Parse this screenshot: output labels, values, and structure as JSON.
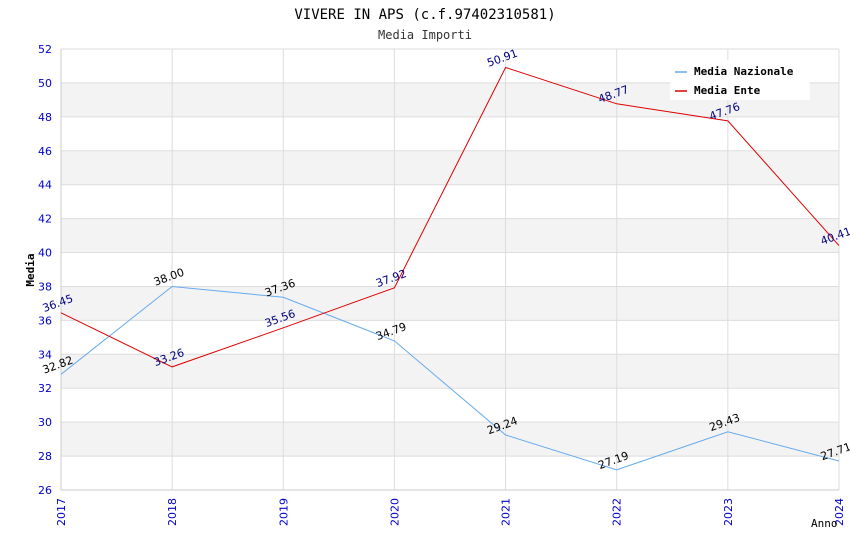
{
  "chart_data": {
    "type": "line",
    "title": "VIVERE IN APS (c.f.97402310581)",
    "subtitle": "Media Importi",
    "xlabel": "Anno",
    "ylabel": "Media",
    "x": [
      "2017",
      "2018",
      "2019",
      "2020",
      "2021",
      "2022",
      "2023",
      "2024"
    ],
    "ylim": [
      26,
      52
    ],
    "yticks": [
      "26",
      "28",
      "30",
      "32",
      "34",
      "36",
      "38",
      "40",
      "42",
      "44",
      "46",
      "48",
      "50",
      "52"
    ],
    "grid": true,
    "legend_position": "top-right",
    "series": [
      {
        "name": "Media Nazionale",
        "color": "#66aaee",
        "label_color": "#000000",
        "values": [
          32.82,
          38.0,
          37.36,
          34.79,
          29.24,
          27.19,
          29.43,
          27.71
        ],
        "labels": [
          "32.82",
          "38.00",
          "37.36",
          "34.79",
          "29.24",
          "27.19",
          "29.43",
          "27.71"
        ]
      },
      {
        "name": "Media Ente",
        "color": "#dd0000",
        "label_color": "#000080",
        "values": [
          36.45,
          33.26,
          35.56,
          37.92,
          50.91,
          48.77,
          47.76,
          40.41
        ],
        "labels": [
          "36.45",
          "33.26",
          "35.56",
          "37.92",
          "50.91",
          "48.77",
          "47.76",
          "40.41"
        ]
      }
    ],
    "colors": {
      "tick_y": "#0000cc",
      "tick_x": "#0000cc",
      "band": "#f3f3f3",
      "grid": "#dddddd",
      "axis": "#cccccc"
    }
  }
}
